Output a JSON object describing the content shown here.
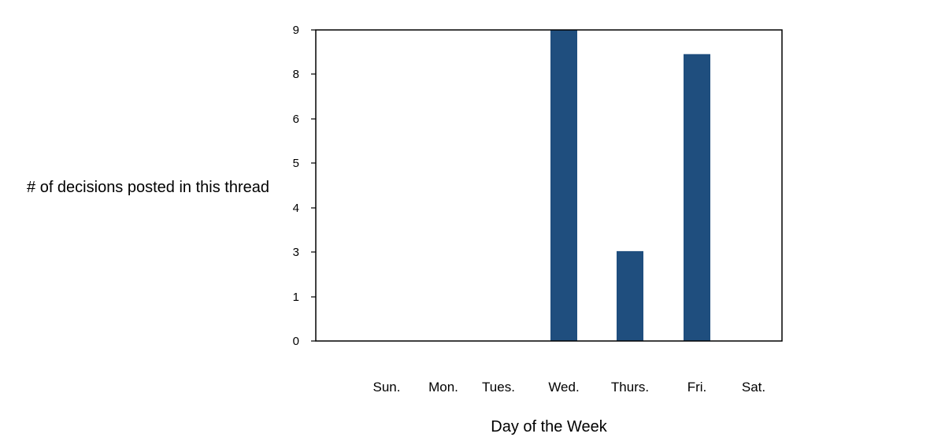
{
  "chart_data": {
    "type": "bar",
    "title": "",
    "xlabel": "Day of the Week",
    "ylabel": "# of decisions posted in this thread",
    "categories": [
      "Sun.",
      "Mon.",
      "Tues.",
      "Wed.",
      "Thurs.",
      "Fri.",
      "Sat."
    ],
    "values": [
      0,
      0,
      0,
      9,
      2.6,
      8.3,
      0
    ],
    "yticks": [
      "0",
      "1",
      "3",
      "4",
      "5",
      "6",
      "8",
      "9"
    ],
    "ylim": [
      0,
      9
    ],
    "grid": false,
    "legend": "none",
    "bar_color": "#1f4e7e"
  }
}
